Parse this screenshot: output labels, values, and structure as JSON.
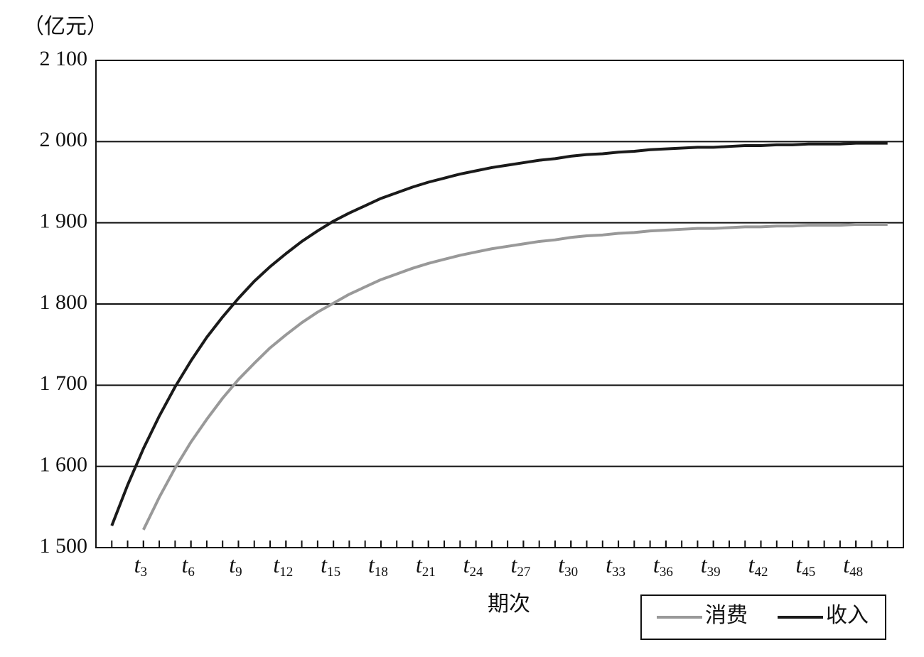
{
  "chart_data": {
    "type": "line",
    "y_unit_label": "（亿元）",
    "x_label": "期次",
    "x": [
      1,
      2,
      3,
      4,
      5,
      6,
      7,
      8,
      9,
      10,
      11,
      12,
      13,
      14,
      15,
      16,
      17,
      18,
      19,
      20,
      21,
      22,
      23,
      24,
      25,
      26,
      27,
      28,
      29,
      30,
      31,
      32,
      33,
      34,
      35,
      36,
      37,
      38,
      39,
      40,
      41,
      42,
      43,
      44,
      45,
      46,
      47,
      48,
      49,
      50
    ],
    "series": [
      {
        "name": "消费",
        "color": "#999999",
        "values": [
          null,
          null,
          1522,
          1562,
          1598,
          1630,
          1658,
          1684,
          1707,
          1727,
          1746,
          1762,
          1777,
          1790,
          1801,
          1812,
          1821,
          1830,
          1837,
          1844,
          1850,
          1855,
          1860,
          1864,
          1868,
          1871,
          1874,
          1877,
          1879,
          1882,
          1884,
          1885,
          1887,
          1888,
          1890,
          1891,
          1892,
          1893,
          1893,
          1894,
          1895,
          1895,
          1896,
          1896,
          1897,
          1897,
          1897,
          1898,
          1898,
          1898
        ]
      },
      {
        "name": "收入",
        "color": "#1a1a1a",
        "values": [
          1527,
          1577,
          1622,
          1662,
          1698,
          1730,
          1759,
          1784,
          1807,
          1828,
          1846,
          1862,
          1877,
          1890,
          1902,
          1912,
          1921,
          1930,
          1937,
          1944,
          1950,
          1955,
          1960,
          1964,
          1968,
          1971,
          1974,
          1977,
          1979,
          1982,
          1984,
          1985,
          1987,
          1988,
          1990,
          1991,
          1992,
          1993,
          1993,
          1994,
          1995,
          1995,
          1996,
          1996,
          1997,
          1997,
          1997,
          1998,
          1998,
          1998
        ]
      }
    ],
    "xlim": [
      0,
      51
    ],
    "xticks": [
      {
        "value": 3,
        "label": "t3"
      },
      {
        "value": 6,
        "label": "t6"
      },
      {
        "value": 9,
        "label": "t9"
      },
      {
        "value": 12,
        "label": "t12"
      },
      {
        "value": 15,
        "label": "t15"
      },
      {
        "value": 18,
        "label": "t18"
      },
      {
        "value": 21,
        "label": "t21"
      },
      {
        "value": 24,
        "label": "t24"
      },
      {
        "value": 27,
        "label": "t27"
      },
      {
        "value": 30,
        "label": "t30"
      },
      {
        "value": 33,
        "label": "t33"
      },
      {
        "value": 36,
        "label": "t36"
      },
      {
        "value": 39,
        "label": "t39"
      },
      {
        "value": 42,
        "label": "t42"
      },
      {
        "value": 45,
        "label": "t45"
      },
      {
        "value": 48,
        "label": "t48"
      }
    ],
    "ylim": [
      1500,
      2100
    ],
    "yticks": [
      {
        "value": 1500,
        "label": "1 500"
      },
      {
        "value": 1600,
        "label": "1 600"
      },
      {
        "value": 1700,
        "label": "1 700"
      },
      {
        "value": 1800,
        "label": "1 800"
      },
      {
        "value": 1900,
        "label": "1 900"
      },
      {
        "value": 2000,
        "label": "2 000"
      },
      {
        "value": 2100,
        "label": "2 100"
      }
    ],
    "grid": true,
    "legend_position": "below-right"
  }
}
